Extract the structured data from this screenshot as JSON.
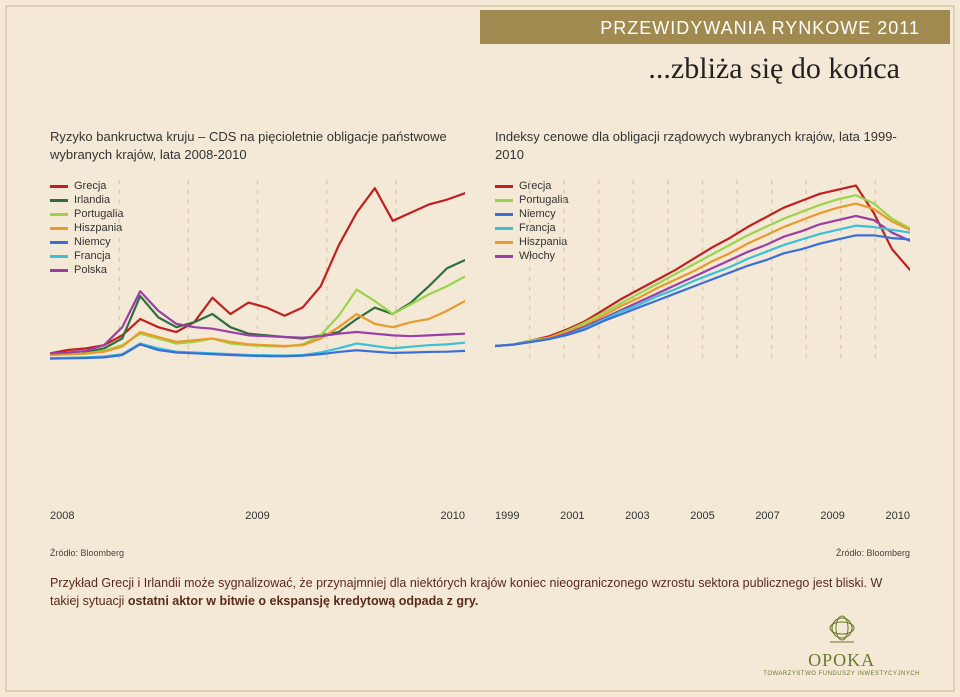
{
  "page": {
    "bg_color": "#f4e9d6",
    "accent_band_color": "#a08a4f",
    "border_color": "#c9b98f",
    "header": "PRZEWIDYWANIA RYNKOWE 2011",
    "subtitle": "...zbliża się do końca"
  },
  "chart_left": {
    "type": "line",
    "title": "Ryzyko bankructwa kruju – CDS na pięcioletnie obligacje państwowe\nwybranych krajów, lata 2008-2010",
    "source": "Źródło: Bloomberg",
    "xticks": [
      "2008",
      "2009",
      "2010"
    ],
    "xlim": [
      2008,
      2011
    ],
    "ylim": [
      0,
      1100
    ],
    "grid_color": "#d8cba8",
    "grid_dash": "3,4",
    "background": "#f4e9d6",
    "linewidth": 1.6,
    "label_fontsize": 13,
    "tick_fontsize": 11,
    "legend": [
      {
        "label": "Grecja",
        "color": "#c02020"
      },
      {
        "label": "Irlandia",
        "color": "#2f6f3f"
      },
      {
        "label": "Portugalia",
        "color": "#9bd34a"
      },
      {
        "label": "Hiszpania",
        "color": "#e89a2a"
      },
      {
        "label": "Niemcy",
        "color": "#3a6fd8"
      },
      {
        "label": "Francja",
        "color": "#3bc0d8"
      },
      {
        "label": "Polska",
        "color": "#9a3fa8"
      }
    ],
    "series": {
      "Grecja": [
        40,
        60,
        70,
        90,
        150,
        250,
        200,
        170,
        230,
        380,
        280,
        350,
        320,
        270,
        320,
        450,
        700,
        900,
        1050,
        850,
        900,
        950,
        980,
        1020
      ],
      "Irlandia": [
        30,
        35,
        45,
        70,
        130,
        390,
        260,
        200,
        230,
        280,
        200,
        160,
        150,
        140,
        130,
        150,
        170,
        250,
        320,
        280,
        350,
        450,
        560,
        610
      ],
      "Portugalia": [
        30,
        35,
        40,
        55,
        90,
        160,
        130,
        100,
        110,
        130,
        100,
        90,
        85,
        80,
        95,
        150,
        270,
        430,
        360,
        280,
        340,
        400,
        450,
        510
      ],
      "Hiszpania": [
        30,
        33,
        38,
        50,
        80,
        170,
        140,
        110,
        120,
        130,
        110,
        95,
        90,
        85,
        90,
        130,
        200,
        280,
        220,
        200,
        230,
        250,
        300,
        360
      ],
      "Polska": [
        40,
        45,
        55,
        90,
        200,
        420,
        300,
        220,
        200,
        190,
        170,
        150,
        145,
        140,
        135,
        145,
        160,
        170,
        160,
        150,
        145,
        150,
        155,
        160
      ],
      "Francja": [
        10,
        12,
        15,
        20,
        35,
        100,
        70,
        50,
        45,
        40,
        35,
        30,
        28,
        26,
        30,
        45,
        70,
        100,
        85,
        70,
        80,
        90,
        95,
        105
      ],
      "Niemcy": [
        8,
        9,
        11,
        15,
        30,
        95,
        60,
        45,
        40,
        35,
        30,
        25,
        23,
        22,
        25,
        35,
        48,
        58,
        50,
        42,
        45,
        48,
        50,
        55
      ]
    }
  },
  "chart_right": {
    "type": "line",
    "title": "Indeksy cenowe dla obligacji rządowych wybranych krajów,\nlata 1999-2010",
    "source": "Źródło: Bloomberg",
    "xticks": [
      "1999",
      "2001",
      "2003",
      "2005",
      "2007",
      "2009",
      "2010"
    ],
    "xlim": [
      1999,
      2011
    ],
    "ylim": [
      90,
      220
    ],
    "grid_color": "#d8cba8",
    "grid_dash": "3,4",
    "background": "#f4e9d6",
    "linewidth": 1.6,
    "label_fontsize": 13,
    "tick_fontsize": 11,
    "legend": [
      {
        "label": "Grecja",
        "color": "#c02020"
      },
      {
        "label": "Portugalia",
        "color": "#9bd34a"
      },
      {
        "label": "Niemcy",
        "color": "#3a6fd8"
      },
      {
        "label": "Francja",
        "color": "#3bc0d8"
      },
      {
        "label": "Hiszpania",
        "color": "#e89a2a"
      },
      {
        "label": "Włochy",
        "color": "#9a3fa8"
      }
    ],
    "series": {
      "Grecja": [
        100,
        101,
        104,
        107,
        112,
        118,
        126,
        134,
        141,
        148,
        155,
        163,
        171,
        178,
        186,
        193,
        200,
        205,
        210,
        213,
        216,
        196,
        170,
        155
      ],
      "Portugalia": [
        100,
        101,
        104,
        106,
        111,
        117,
        124,
        131,
        138,
        145,
        152,
        159,
        166,
        173,
        180,
        186,
        192,
        197,
        202,
        206,
        209,
        203,
        192,
        185
      ],
      "Hiszpania": [
        100,
        101,
        103,
        106,
        110,
        115,
        122,
        129,
        135,
        142,
        148,
        154,
        161,
        167,
        174,
        180,
        186,
        191,
        196,
        200,
        203,
        199,
        190,
        184
      ],
      "Włochy": [
        100,
        101,
        103,
        105,
        109,
        114,
        120,
        126,
        132,
        138,
        144,
        150,
        156,
        162,
        168,
        173,
        179,
        183,
        188,
        191,
        194,
        191,
        182,
        176
      ],
      "Francja": [
        100,
        101,
        103,
        105,
        108,
        113,
        119,
        125,
        130,
        136,
        141,
        147,
        152,
        157,
        163,
        168,
        173,
        177,
        181,
        184,
        187,
        186,
        184,
        182
      ],
      "Niemcy": [
        100,
        101,
        103,
        105,
        108,
        112,
        118,
        123,
        128,
        133,
        138,
        143,
        148,
        153,
        158,
        162,
        167,
        170,
        174,
        177,
        180,
        180,
        178,
        177
      ]
    }
  },
  "footnote": {
    "text_before": "Przykład Grecji i Irlandii może sygnalizować, że przynajmniej dla niektórych krajów koniec nieograniczonego wzrostu sektora publicznego jest bliski. W takiej sytuacji ",
    "text_bold": "ostatni aktor w bitwie o ekspansję kredytową odpada z gry.",
    "color": "#5a2a1a",
    "fontsize": 12.5
  },
  "logo": {
    "name": "OPOKA",
    "sub": "TOWARZYSTWO FUNDUSZY INWESTYCYJNYCH",
    "color": "#6a7a2a"
  }
}
